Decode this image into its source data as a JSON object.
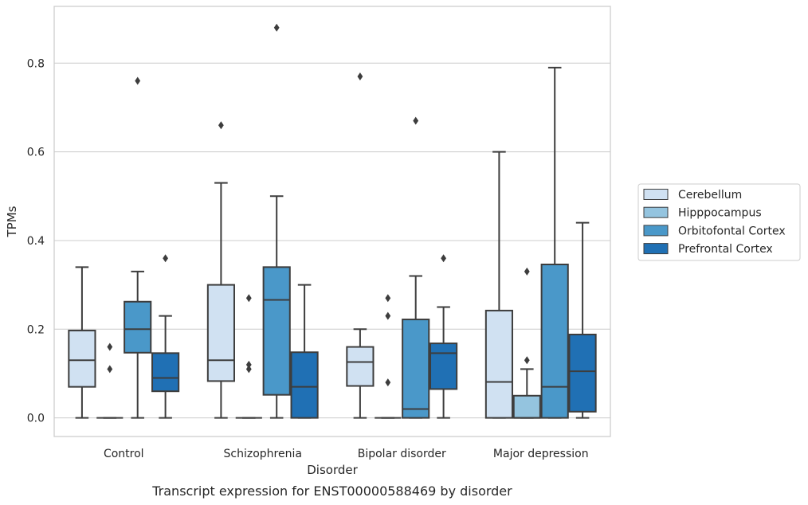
{
  "chart_data": {
    "type": "box",
    "title": "",
    "caption": "Transcript expression for ENST00000588469 by disorder",
    "xlabel": "Disorder",
    "ylabel": "TPMs",
    "ylim": [
      -0.042,
      0.928
    ],
    "yticks": [
      0.0,
      0.2,
      0.4,
      0.6,
      0.8
    ],
    "ytick_labels": [
      "0.0",
      "0.2",
      "0.4",
      "0.6",
      "0.8"
    ],
    "grid": "horizontal",
    "legend_placement": "right",
    "categories": [
      "Control",
      "Schizophrenia",
      "Bipolar disorder",
      "Major depression"
    ],
    "series": [
      {
        "name": "Cerebellum",
        "color": "#d0e1f2",
        "boxes": [
          {
            "whislo": 0.0,
            "q1": 0.07,
            "med": 0.13,
            "q3": 0.197,
            "whishi": 0.34,
            "fliers": []
          },
          {
            "whislo": 0.0,
            "q1": 0.083,
            "med": 0.13,
            "q3": 0.3,
            "whishi": 0.53,
            "fliers": [
              0.66
            ]
          },
          {
            "whislo": 0.0,
            "q1": 0.072,
            "med": 0.126,
            "q3": 0.16,
            "whishi": 0.2,
            "fliers": [
              0.77
            ]
          },
          {
            "whislo": 0.0,
            "q1": 0.0,
            "med": 0.081,
            "q3": 0.242,
            "whishi": 0.6,
            "fliers": []
          }
        ]
      },
      {
        "name": "Hipppocampus",
        "color": "#94c4df",
        "boxes": [
          {
            "whislo": 0.0,
            "q1": 0.0,
            "med": 0.0,
            "q3": 0.0,
            "whishi": 0.0,
            "fliers": [
              0.11,
              0.16
            ]
          },
          {
            "whislo": 0.0,
            "q1": 0.0,
            "med": 0.0,
            "q3": 0.0,
            "whishi": 0.0,
            "fliers": [
              0.11,
              0.12,
              0.27
            ]
          },
          {
            "whislo": 0.0,
            "q1": 0.0,
            "med": 0.0,
            "q3": 0.0,
            "whishi": 0.0,
            "fliers": [
              0.08,
              0.23,
              0.27
            ]
          },
          {
            "whislo": 0.0,
            "q1": 0.0,
            "med": 0.0,
            "q3": 0.05,
            "whishi": 0.11,
            "fliers": [
              0.13,
              0.33
            ]
          }
        ]
      },
      {
        "name": "Orbitofontal Cortex",
        "color": "#4a98c9",
        "boxes": [
          {
            "whislo": 0.0,
            "q1": 0.147,
            "med": 0.2,
            "q3": 0.262,
            "whishi": 0.33,
            "fliers": [
              0.76
            ]
          },
          {
            "whislo": 0.0,
            "q1": 0.052,
            "med": 0.266,
            "q3": 0.34,
            "whishi": 0.5,
            "fliers": [
              0.88
            ]
          },
          {
            "whislo": 0.0,
            "q1": 0.0,
            "med": 0.02,
            "q3": 0.222,
            "whishi": 0.32,
            "fliers": [
              0.67
            ]
          },
          {
            "whislo": 0.0,
            "q1": 0.0,
            "med": 0.07,
            "q3": 0.346,
            "whishi": 0.79,
            "fliers": []
          }
        ]
      },
      {
        "name": "Prefrontal Cortex",
        "color": "#2070b4",
        "boxes": [
          {
            "whislo": 0.0,
            "q1": 0.06,
            "med": 0.09,
            "q3": 0.146,
            "whishi": 0.23,
            "fliers": [
              0.36
            ]
          },
          {
            "whislo": 0.0,
            "q1": 0.0,
            "med": 0.07,
            "q3": 0.148,
            "whishi": 0.3,
            "fliers": []
          },
          {
            "whislo": 0.0,
            "q1": 0.065,
            "med": 0.146,
            "q3": 0.168,
            "whishi": 0.25,
            "fliers": [
              0.36
            ]
          },
          {
            "whislo": 0.0,
            "q1": 0.014,
            "med": 0.105,
            "q3": 0.188,
            "whishi": 0.44,
            "fliers": []
          }
        ]
      }
    ]
  }
}
